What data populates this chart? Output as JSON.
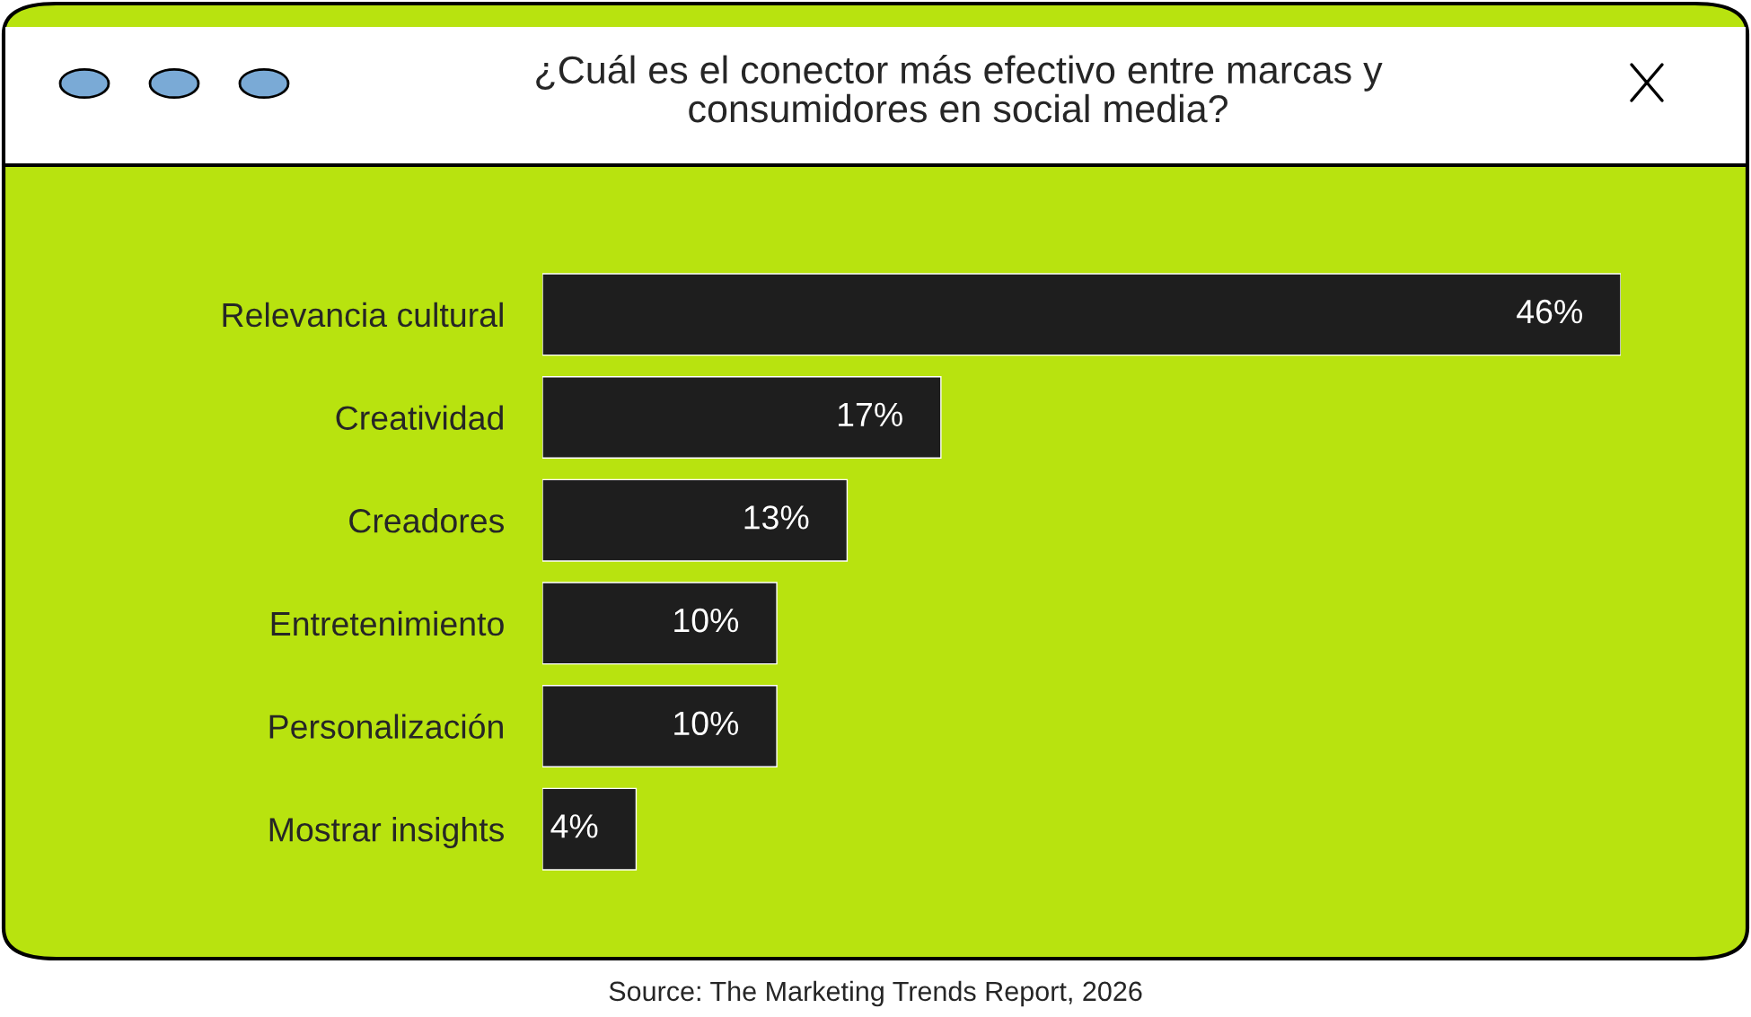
{
  "chart_data": {
    "type": "bar",
    "orientation": "horizontal",
    "title": "¿Cuál es el conector más efectivo entre marcas y\nconsumidores en social media?",
    "categories": [
      "Relevancia cultural",
      "Creatividad",
      "Creadores",
      "Entretenimiento",
      "Personalización",
      "Mostrar insights"
    ],
    "values": [
      46,
      17,
      13,
      10,
      10,
      4
    ],
    "value_labels": [
      "46%",
      "17%",
      "13%",
      "10%",
      "10%",
      "4%"
    ],
    "color": "#1e1e1e",
    "annotations": [
      "Source: The Marketing Trends Report, 2026"
    ]
  }
}
